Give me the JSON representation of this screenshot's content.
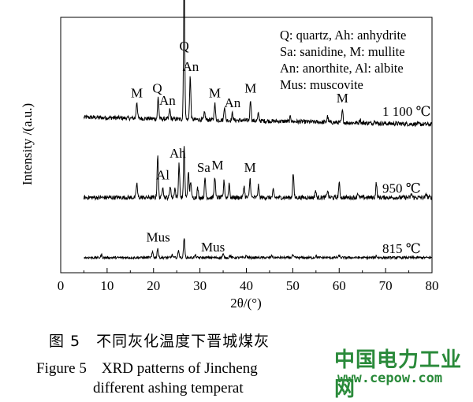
{
  "chart_data": {
    "type": "line",
    "xlabel": "2θ/(°)",
    "ylabel": "Intensity /(a.u.)",
    "xlim": [
      0,
      80
    ],
    "xticks": [
      0,
      10,
      20,
      30,
      40,
      50,
      60,
      70,
      80
    ],
    "legend": {
      "placement": "top-right",
      "lines": [
        "Q: quartz, Ah: anhydrite",
        "Sa: sanidine, M: mullite",
        "An: anorthite, Al: albite",
        "Mus: muscovite"
      ]
    },
    "series": [
      {
        "name": "1 100 ℃",
        "baseline": 3.0,
        "peaks": [
          [
            16.4,
            0.35
          ],
          [
            21.0,
            0.45
          ],
          [
            23.5,
            0.2
          ],
          [
            26.6,
            3.0
          ],
          [
            27.9,
            0.9
          ],
          [
            31.0,
            0.15
          ],
          [
            33.2,
            0.35
          ],
          [
            35.3,
            0.3
          ],
          [
            37.0,
            0.15
          ],
          [
            40.9,
            0.45
          ],
          [
            42.6,
            0.15
          ],
          [
            49.5,
            0.1
          ],
          [
            57.5,
            0.12
          ],
          [
            60.7,
            0.25
          ],
          [
            64.5,
            0.08
          ],
          [
            67.7,
            0.08
          ]
        ],
        "labels": [
          {
            "text": "M",
            "x": 16.4
          },
          {
            "text": "Q",
            "x": 20.8
          },
          {
            "text": "An",
            "x": 23.0
          },
          {
            "text": "Q",
            "x": 26.6
          },
          {
            "text": "An",
            "x": 28.0
          },
          {
            "text": "M",
            "x": 33.2
          },
          {
            "text": "An",
            "x": 37.0
          },
          {
            "text": "M",
            "x": 40.9
          },
          {
            "text": "M",
            "x": 60.7
          }
        ]
      },
      {
        "name": "950 ℃",
        "baseline": 1.4,
        "peaks": [
          [
            16.4,
            0.3
          ],
          [
            20.9,
            0.9
          ],
          [
            22.0,
            0.25
          ],
          [
            23.6,
            0.25
          ],
          [
            24.6,
            0.2
          ],
          [
            25.5,
            0.7
          ],
          [
            26.6,
            1.1
          ],
          [
            27.5,
            0.55
          ],
          [
            28.0,
            0.35
          ],
          [
            29.5,
            0.2
          ],
          [
            31.1,
            0.4
          ],
          [
            33.2,
            0.45
          ],
          [
            35.2,
            0.35
          ],
          [
            36.3,
            0.3
          ],
          [
            39.5,
            0.25
          ],
          [
            40.8,
            0.4
          ],
          [
            42.6,
            0.25
          ],
          [
            45.8,
            0.15
          ],
          [
            50.1,
            0.5
          ],
          [
            54.9,
            0.15
          ],
          [
            57.5,
            0.15
          ],
          [
            60.0,
            0.3
          ],
          [
            64.0,
            0.1
          ],
          [
            68.0,
            0.3
          ],
          [
            75.6,
            0.08
          ],
          [
            78.8,
            0.08
          ]
        ],
        "labels": [
          {
            "text": "Ah",
            "x": 25.2
          },
          {
            "text": "Al",
            "x": 22.0
          },
          {
            "text": "Sa",
            "x": 30.8
          },
          {
            "text": "M",
            "x": 33.8
          },
          {
            "text": "M",
            "x": 40.8
          }
        ]
      },
      {
        "name": "815 ℃",
        "baseline": 0.15,
        "peaks": [
          [
            8.8,
            0.06
          ],
          [
            19.8,
            0.12
          ],
          [
            20.9,
            0.2
          ],
          [
            24.0,
            0.06
          ],
          [
            25.4,
            0.15
          ],
          [
            26.6,
            0.42
          ],
          [
            29.0,
            0.05
          ],
          [
            35.0,
            0.07
          ],
          [
            36.5,
            0.05
          ],
          [
            40.0,
            0.04
          ],
          [
            45.5,
            0.05
          ],
          [
            50.0,
            0.05
          ],
          [
            55.0,
            0.04
          ],
          [
            60.0,
            0.04
          ],
          [
            68.0,
            0.04
          ]
        ],
        "labels": [
          {
            "text": "Mus",
            "x": 21.0
          },
          {
            "text": "Mus",
            "x": 32.8
          }
        ]
      }
    ]
  },
  "caption": {
    "cn": "图 5　不同灰化温度下晋城煤灰",
    "en_line1": "Figure 5　XRD patterns of Jincheng",
    "en_line2": "different ashing temperat"
  },
  "watermark": {
    "site_cn": "中国电力工业网",
    "url": "www.cepow.com",
    "color": "#2a8a3a"
  }
}
